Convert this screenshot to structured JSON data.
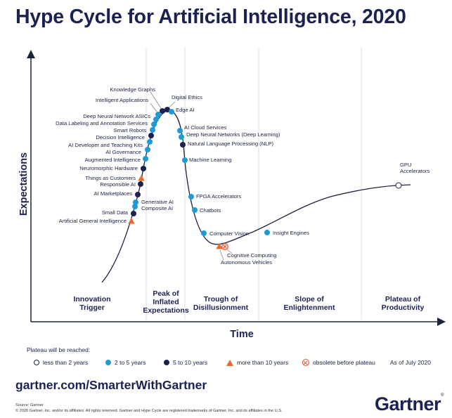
{
  "title": "Hype Cycle for Artificial Intelligence, 2020",
  "axes": {
    "y_label": "Expectations",
    "x_label": "Time"
  },
  "phases": [
    "Innovation\nTrigger",
    "Peak of\nInflated\nExpectations",
    "Trough of\nDisillusionment",
    "Slope of\nEnlightenment",
    "Plateau of\nProductivity"
  ],
  "technologies": [
    {
      "name": "Knowledge Graphs",
      "status": "5-10"
    },
    {
      "name": "Intelligent Applications",
      "status": "2-5"
    },
    {
      "name": "Digital Ethics",
      "status": "5-10"
    },
    {
      "name": "Edge AI",
      "status": "2-5"
    },
    {
      "name": "Deep Neural Network ASICs",
      "status": "2-5"
    },
    {
      "name": "Data Labeling and Annotation Services",
      "status": "2-5"
    },
    {
      "name": "Smart Robots",
      "status": "2-5"
    },
    {
      "name": "Decision Intelligence",
      "status": "5-10"
    },
    {
      "name": "AI Developer and Teaching Kits",
      "status": "2-5"
    },
    {
      "name": "AI Governance",
      "status": "2-5"
    },
    {
      "name": "Augmented Intelligence",
      "status": "2-5"
    },
    {
      "name": "Neuromorphic Hardware",
      "status": "5-10"
    },
    {
      "name": "Things as Customers",
      "status": ">10"
    },
    {
      "name": "Responsible AI",
      "status": "5-10"
    },
    {
      "name": "AI Marketplaces",
      "status": "5-10"
    },
    {
      "name": "Generative AI",
      "status": "2-5"
    },
    {
      "name": "Composite AI",
      "status": "2-5"
    },
    {
      "name": "Small Data",
      "status": "5-10"
    },
    {
      "name": "Artificial General Intelligence",
      "status": ">10"
    },
    {
      "name": "AI Cloud Services",
      "status": "2-5"
    },
    {
      "name": "Deep Neural Networks (Deep Learning)",
      "status": "2-5"
    },
    {
      "name": "Natural Language Processing (NLP)",
      "status": "5-10"
    },
    {
      "name": "Machine Learning",
      "status": "2-5"
    },
    {
      "name": "FPGA Accelerators",
      "status": "2-5"
    },
    {
      "name": "Chatbots",
      "status": "2-5"
    },
    {
      "name": "Computer Vision",
      "status": "2-5"
    },
    {
      "name": "Cognitive Computing",
      "status": "obsolete"
    },
    {
      "name": "Autonomous Vehicles",
      "status": ">10"
    },
    {
      "name": "Insight Engines",
      "status": "2-5"
    },
    {
      "name": "GPU\nAccelerators",
      "status": "<2"
    }
  ],
  "legend": {
    "heading": "Plateau will be reached:",
    "items": [
      {
        "symbol": "open-circle",
        "label": "less than 2 years"
      },
      {
        "symbol": "cyan-dot",
        "label": "2 to 5 years"
      },
      {
        "symbol": "navy-dot",
        "label": "5 to 10 years"
      },
      {
        "symbol": "orange-triangle",
        "label": "more than 10 years"
      },
      {
        "symbol": "obsolete-circle",
        "label": "obsolete before plateau"
      }
    ],
    "as_of": "As of July 2020"
  },
  "colors": {
    "title": "#1b2251",
    "less_than_2": "#ffffff",
    "2_to_5": "#1e9bd7",
    "5_to_10": "#1b2251",
    "more_than_10": "#ec6a2c",
    "obsolete": "#e8532b"
  },
  "footer": {
    "url": "gartner.com/SmarterWithGartner",
    "source": "Source: Gartner",
    "copyright": "© 2020 Gartner, Inc. and/or its affiliates. All rights reserved. Gartner and Hype Cycle are registered trademarks of Gartner, Inc. and its affiliates in the U.S.",
    "logo": "Gartner"
  }
}
